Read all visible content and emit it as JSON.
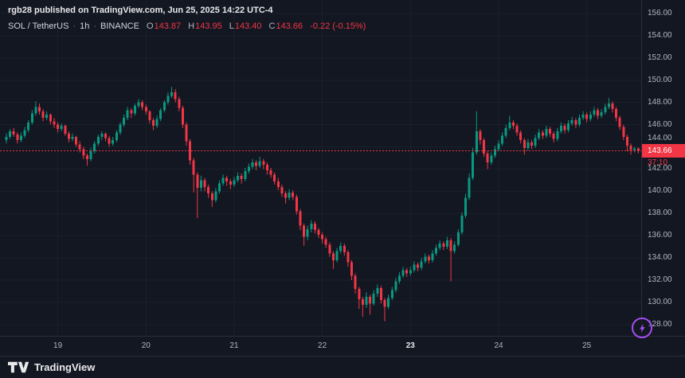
{
  "attribution": {
    "text": "rgb28 published on TradingView.com, Jun 25, 2025 14:22 UTC-4"
  },
  "legend": {
    "symbol": "SOL / TetherUS",
    "separator": "·",
    "interval": "1h",
    "exchange": "BINANCE",
    "open_label": "O",
    "open": "143.87",
    "high_label": "H",
    "high": "143.95",
    "low_label": "L",
    "low": "143.40",
    "close_label": "C",
    "close": "143.66",
    "change": "-0.22 (-0.15%)"
  },
  "price_scale": {
    "current": {
      "price": "143.66",
      "countdown": "37:10"
    }
  },
  "footer": {
    "brand": "TradingView"
  },
  "colors": {
    "bg": "#131722",
    "grid": "#1b1f2a",
    "up": "#089981",
    "down": "#f23645",
    "accent_red": "#f23645",
    "axis_text": "#b2b5be",
    "boost_purple": "#a64df2"
  },
  "chart_data": {
    "type": "candlestick",
    "title": "SOL / TetherUS",
    "exchange": "BINANCE",
    "interval": "1h",
    "last_price": 143.66,
    "last_ohlc": {
      "open": 143.87,
      "high": 143.95,
      "low": 143.4,
      "close": 143.66
    },
    "change": -0.22,
    "change_pct": -0.15,
    "price_axis_top": 156,
    "ylim": [
      127.0,
      157.2
    ],
    "grid": true,
    "price_ticks": [
      156,
      154,
      152,
      150,
      148,
      146,
      144,
      142,
      140,
      138,
      136,
      134,
      132,
      130,
      128
    ],
    "day_ticks": [
      {
        "index": 14,
        "label": "19",
        "emphasis": false
      },
      {
        "index": 38,
        "label": "20",
        "emphasis": false
      },
      {
        "index": 62,
        "label": "21",
        "emphasis": false
      },
      {
        "index": 86,
        "label": "22",
        "emphasis": false
      },
      {
        "index": 110,
        "label": "23",
        "emphasis": true
      },
      {
        "index": 134,
        "label": "24",
        "emphasis": false
      },
      {
        "index": 158,
        "label": "25",
        "emphasis": false
      }
    ],
    "candles": [
      [
        144.6,
        145.2,
        144.3,
        144.9
      ],
      [
        144.9,
        145.6,
        144.7,
        145.4
      ],
      [
        145.4,
        145.7,
        144.9,
        145.1
      ],
      [
        145.1,
        145.3,
        144.3,
        144.6
      ],
      [
        144.6,
        145.3,
        144.4,
        145.0
      ],
      [
        145.0,
        145.8,
        144.8,
        145.5
      ],
      [
        145.5,
        146.4,
        145.3,
        146.2
      ],
      [
        146.2,
        147.3,
        146.0,
        147.0
      ],
      [
        147.0,
        148.1,
        146.8,
        147.6
      ],
      [
        147.6,
        147.9,
        146.9,
        147.2
      ],
      [
        147.2,
        147.4,
        146.3,
        146.6
      ],
      [
        146.6,
        147.2,
        146.4,
        146.9
      ],
      [
        146.9,
        147.0,
        146.0,
        146.3
      ],
      [
        146.3,
        146.6,
        145.7,
        146.0
      ],
      [
        146.0,
        146.2,
        145.3,
        145.6
      ],
      [
        145.6,
        146.1,
        145.4,
        145.9
      ],
      [
        145.9,
        146.0,
        145.0,
        145.2
      ],
      [
        145.2,
        145.4,
        144.4,
        144.7
      ],
      [
        144.7,
        145.2,
        144.5,
        144.9
      ],
      [
        144.9,
        145.0,
        144.0,
        144.2
      ],
      [
        144.2,
        144.5,
        143.5,
        143.8
      ],
      [
        143.8,
        144.0,
        142.9,
        143.2
      ],
      [
        143.2,
        143.4,
        142.3,
        142.9
      ],
      [
        142.9,
        143.9,
        142.7,
        143.6
      ],
      [
        143.6,
        144.5,
        143.4,
        144.3
      ],
      [
        144.3,
        145.1,
        144.1,
        144.9
      ],
      [
        144.9,
        145.4,
        144.6,
        145.2
      ],
      [
        145.2,
        145.3,
        144.5,
        144.8
      ],
      [
        144.8,
        145.0,
        144.0,
        144.3
      ],
      [
        144.3,
        144.9,
        144.1,
        144.6
      ],
      [
        144.6,
        145.5,
        144.4,
        145.3
      ],
      [
        145.3,
        146.2,
        145.1,
        146.0
      ],
      [
        146.0,
        146.9,
        145.8,
        146.6
      ],
      [
        146.6,
        147.6,
        146.4,
        147.3
      ],
      [
        147.3,
        147.5,
        146.6,
        147.0
      ],
      [
        147.0,
        147.9,
        146.8,
        147.7
      ],
      [
        147.7,
        148.3,
        147.5,
        148.0
      ],
      [
        148.0,
        148.2,
        147.3,
        147.6
      ],
      [
        147.6,
        147.8,
        146.9,
        147.2
      ],
      [
        147.2,
        147.3,
        146.1,
        146.4
      ],
      [
        146.4,
        146.6,
        145.5,
        145.9
      ],
      [
        145.9,
        146.8,
        145.7,
        146.5
      ],
      [
        146.5,
        147.5,
        146.3,
        147.3
      ],
      [
        147.3,
        148.2,
        147.1,
        148.0
      ],
      [
        148.0,
        148.9,
        147.8,
        148.6
      ],
      [
        148.6,
        149.4,
        148.4,
        148.9
      ],
      [
        148.9,
        149.2,
        148.0,
        148.3
      ],
      [
        148.3,
        148.5,
        147.2,
        147.5
      ],
      [
        147.5,
        147.7,
        145.7,
        146.0
      ],
      [
        146.0,
        146.2,
        144.1,
        144.5
      ],
      [
        144.5,
        144.7,
        142.4,
        142.8
      ],
      [
        142.8,
        143.0,
        139.9,
        141.5
      ],
      [
        141.5,
        141.7,
        137.6,
        140.3
      ],
      [
        140.3,
        141.4,
        140.0,
        141.0
      ],
      [
        141.0,
        141.2,
        140.0,
        140.4
      ],
      [
        140.4,
        140.6,
        139.4,
        139.8
      ],
      [
        139.8,
        140.0,
        138.6,
        139.2
      ],
      [
        139.2,
        140.3,
        139.0,
        140.0
      ],
      [
        140.0,
        141.0,
        139.8,
        140.7
      ],
      [
        140.7,
        141.5,
        140.5,
        141.2
      ],
      [
        141.2,
        141.4,
        140.5,
        140.9
      ],
      [
        140.9,
        141.1,
        140.2,
        140.6
      ],
      [
        140.6,
        141.3,
        140.4,
        141.0
      ],
      [
        141.0,
        141.7,
        140.8,
        141.4
      ],
      [
        141.4,
        141.6,
        140.7,
        141.1
      ],
      [
        141.1,
        142.1,
        140.9,
        141.8
      ],
      [
        141.8,
        142.5,
        141.6,
        142.2
      ],
      [
        142.2,
        142.9,
        142.0,
        142.6
      ],
      [
        142.6,
        142.8,
        141.9,
        142.3
      ],
      [
        142.3,
        143.1,
        142.1,
        142.7
      ],
      [
        142.7,
        142.9,
        142.0,
        142.4
      ],
      [
        142.4,
        142.6,
        141.5,
        141.9
      ],
      [
        141.9,
        142.1,
        141.2,
        141.5
      ],
      [
        141.5,
        141.7,
        140.6,
        140.9
      ],
      [
        140.9,
        141.2,
        140.1,
        140.4
      ],
      [
        140.4,
        140.6,
        139.5,
        139.8
      ],
      [
        139.8,
        140.0,
        138.9,
        139.4
      ],
      [
        139.4,
        140.2,
        139.2,
        139.9
      ],
      [
        139.9,
        140.1,
        139.2,
        139.5
      ],
      [
        139.5,
        139.7,
        137.9,
        138.2
      ],
      [
        138.2,
        138.4,
        136.5,
        136.9
      ],
      [
        136.9,
        137.1,
        135.1,
        135.9
      ],
      [
        135.9,
        136.9,
        135.6,
        136.6
      ],
      [
        136.6,
        137.4,
        136.3,
        137.1
      ],
      [
        137.1,
        137.3,
        136.2,
        136.5
      ],
      [
        136.5,
        136.7,
        135.8,
        136.1
      ],
      [
        136.1,
        136.3,
        135.3,
        135.7
      ],
      [
        135.7,
        135.9,
        134.9,
        135.2
      ],
      [
        135.2,
        135.4,
        134.1,
        134.4
      ],
      [
        134.4,
        134.6,
        133.0,
        133.8
      ],
      [
        133.8,
        134.9,
        133.6,
        134.6
      ],
      [
        134.6,
        135.4,
        134.4,
        135.1
      ],
      [
        135.1,
        135.3,
        134.2,
        134.5
      ],
      [
        134.5,
        134.7,
        133.2,
        133.6
      ],
      [
        133.6,
        133.8,
        132.0,
        132.4
      ],
      [
        132.4,
        132.6,
        130.8,
        131.2
      ],
      [
        131.2,
        131.4,
        129.4,
        130.3
      ],
      [
        130.3,
        130.5,
        128.7,
        129.8
      ],
      [
        129.8,
        130.9,
        129.5,
        130.5
      ],
      [
        130.5,
        130.7,
        128.9,
        129.9
      ],
      [
        129.9,
        131.1,
        129.7,
        130.8
      ],
      [
        130.8,
        131.6,
        130.5,
        131.3
      ],
      [
        131.3,
        131.5,
        129.9,
        130.2
      ],
      [
        130.2,
        130.4,
        128.3,
        129.6
      ],
      [
        129.6,
        130.7,
        129.4,
        130.4
      ],
      [
        130.4,
        131.4,
        130.2,
        131.1
      ],
      [
        131.1,
        132.2,
        130.9,
        131.9
      ],
      [
        131.9,
        132.7,
        131.7,
        132.4
      ],
      [
        132.4,
        133.2,
        132.2,
        132.9
      ],
      [
        132.9,
        133.1,
        132.3,
        132.6
      ],
      [
        132.6,
        133.2,
        132.4,
        132.9
      ],
      [
        132.9,
        133.7,
        132.7,
        133.4
      ],
      [
        133.4,
        133.6,
        132.8,
        133.1
      ],
      [
        133.1,
        134.0,
        132.9,
        133.7
      ],
      [
        133.7,
        134.4,
        133.5,
        134.1
      ],
      [
        134.1,
        134.3,
        133.5,
        133.8
      ],
      [
        133.8,
        134.7,
        133.6,
        134.4
      ],
      [
        134.4,
        135.2,
        134.2,
        134.9
      ],
      [
        134.9,
        135.6,
        134.7,
        135.3
      ],
      [
        135.3,
        135.5,
        134.7,
        135.0
      ],
      [
        135.0,
        135.9,
        134.8,
        135.6
      ],
      [
        135.6,
        135.8,
        131.9,
        134.6
      ],
      [
        134.6,
        135.5,
        134.4,
        135.2
      ],
      [
        135.2,
        136.6,
        135.0,
        136.3
      ],
      [
        136.3,
        138.1,
        136.1,
        137.8
      ],
      [
        137.8,
        139.8,
        137.6,
        139.4
      ],
      [
        139.4,
        141.6,
        139.2,
        141.2
      ],
      [
        141.2,
        143.9,
        141.0,
        143.5
      ],
      [
        143.5,
        147.2,
        143.3,
        145.4
      ],
      [
        145.4,
        145.6,
        144.2,
        144.6
      ],
      [
        144.6,
        144.8,
        143.1,
        143.4
      ],
      [
        143.4,
        143.6,
        142.0,
        142.6
      ],
      [
        142.6,
        143.5,
        142.4,
        143.2
      ],
      [
        143.2,
        144.1,
        143.0,
        143.8
      ],
      [
        143.8,
        144.6,
        143.6,
        144.3
      ],
      [
        144.3,
        145.3,
        144.1,
        145.0
      ],
      [
        145.0,
        146.0,
        144.8,
        145.7
      ],
      [
        145.7,
        146.8,
        145.5,
        146.2
      ],
      [
        146.2,
        146.4,
        145.6,
        145.9
      ],
      [
        145.9,
        146.1,
        145.0,
        145.3
      ],
      [
        145.3,
        145.5,
        144.3,
        144.6
      ],
      [
        144.6,
        144.8,
        143.3,
        143.9
      ],
      [
        143.9,
        144.7,
        143.7,
        144.4
      ],
      [
        144.4,
        144.6,
        143.8,
        144.1
      ],
      [
        144.1,
        145.1,
        143.9,
        144.8
      ],
      [
        144.8,
        145.6,
        144.6,
        145.3
      ],
      [
        145.3,
        145.5,
        144.7,
        145.0
      ],
      [
        145.0,
        145.9,
        144.8,
        145.6
      ],
      [
        145.6,
        145.8,
        144.9,
        145.2
      ],
      [
        145.2,
        145.4,
        144.4,
        144.7
      ],
      [
        144.7,
        145.7,
        144.5,
        145.4
      ],
      [
        145.4,
        146.2,
        145.2,
        145.9
      ],
      [
        145.9,
        146.1,
        145.2,
        145.5
      ],
      [
        145.5,
        146.4,
        145.3,
        146.1
      ],
      [
        146.1,
        146.7,
        145.9,
        146.4
      ],
      [
        146.4,
        146.6,
        145.7,
        146.0
      ],
      [
        146.0,
        146.9,
        145.8,
        146.6
      ],
      [
        146.6,
        147.2,
        146.4,
        146.9
      ],
      [
        146.9,
        147.1,
        146.2,
        146.5
      ],
      [
        146.5,
        147.2,
        146.3,
        146.9
      ],
      [
        146.9,
        147.6,
        146.7,
        147.3
      ],
      [
        147.3,
        147.5,
        146.5,
        146.8
      ],
      [
        146.8,
        147.4,
        146.6,
        147.1
      ],
      [
        147.1,
        147.9,
        146.9,
        147.6
      ],
      [
        147.6,
        148.4,
        147.4,
        147.9
      ],
      [
        147.9,
        148.1,
        147.1,
        147.4
      ],
      [
        147.4,
        147.6,
        146.3,
        146.6
      ],
      [
        146.6,
        146.8,
        145.5,
        145.8
      ],
      [
        145.8,
        146.0,
        144.6,
        144.9
      ],
      [
        144.9,
        145.1,
        143.6,
        144.1
      ],
      [
        144.1,
        144.3,
        143.3,
        143.7
      ],
      [
        143.7,
        144.0,
        143.5,
        143.87
      ],
      [
        143.87,
        143.95,
        143.4,
        143.66
      ]
    ]
  }
}
